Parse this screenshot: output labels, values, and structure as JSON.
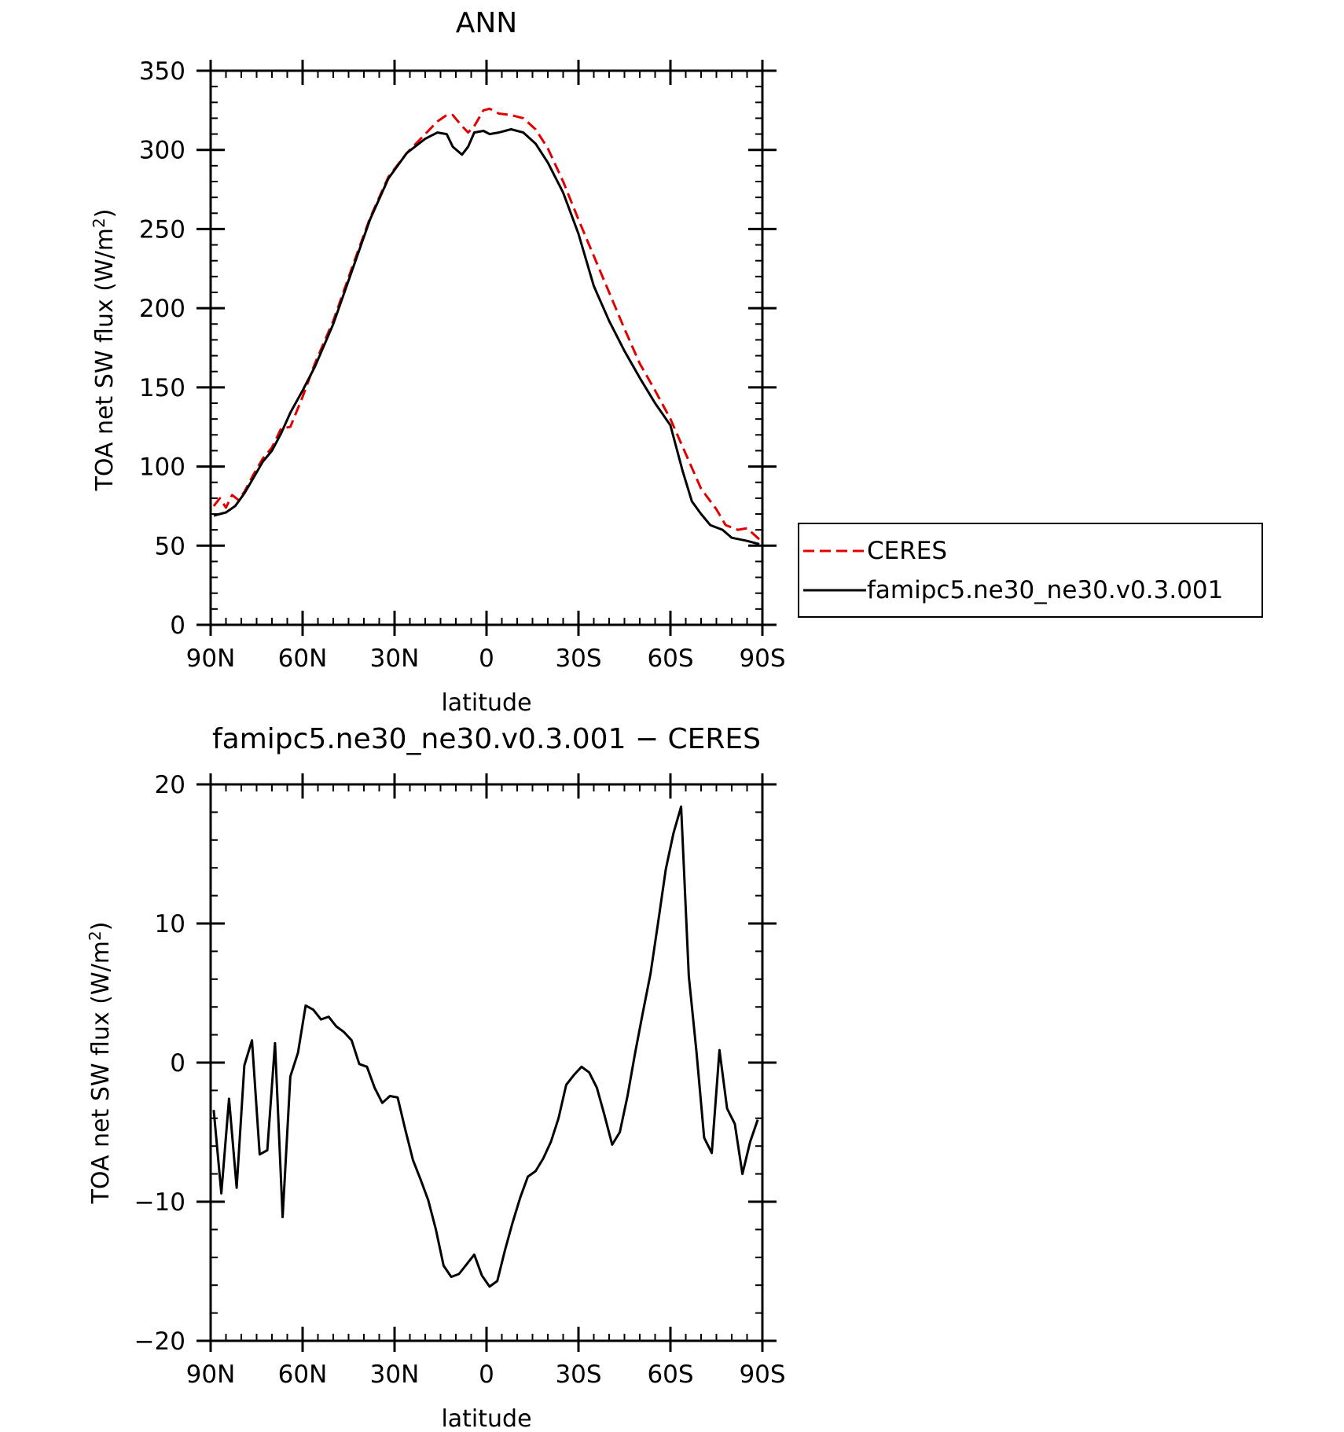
{
  "chart_data": [
    {
      "type": "line",
      "title": "ANN",
      "xlabel": "latitude",
      "ylabel": "TOA net SW flux (W/m",
      "ylabel_sup": "2",
      "ylabel_close": ")",
      "xlim": [
        90,
        -90
      ],
      "ylim": [
        0,
        350
      ],
      "x_ticks": [
        {
          "value": 90,
          "label": "90N"
        },
        {
          "value": 60,
          "label": "60N"
        },
        {
          "value": 30,
          "label": "30N"
        },
        {
          "value": 0,
          "label": "0"
        },
        {
          "value": -30,
          "label": "30S"
        },
        {
          "value": -60,
          "label": "60S"
        },
        {
          "value": -90,
          "label": "90S"
        }
      ],
      "y_ticks": [
        {
          "value": 0,
          "label": "0"
        },
        {
          "value": 50,
          "label": "50"
        },
        {
          "value": 100,
          "label": "100"
        },
        {
          "value": 150,
          "label": "150"
        },
        {
          "value": 200,
          "label": "200"
        },
        {
          "value": 250,
          "label": "250"
        },
        {
          "value": 300,
          "label": "300"
        },
        {
          "value": 350,
          "label": "350"
        }
      ],
      "legend": "right",
      "series": [
        {
          "name": "CERES",
          "color": "#e00000",
          "dash": true,
          "x": [
            89,
            87,
            85,
            83,
            81,
            79,
            76,
            73,
            70,
            67,
            64,
            60,
            56,
            50,
            44,
            38,
            32,
            26,
            20,
            16,
            13,
            11,
            8,
            6,
            4,
            1,
            -1,
            -4,
            -8,
            -12,
            -16,
            -20,
            -25,
            -30,
            -35,
            -40,
            -45,
            -50,
            -55,
            -60,
            -65,
            -70,
            -75,
            -78,
            -82,
            -85,
            -89
          ],
          "values": [
            75,
            80,
            74,
            82,
            79,
            84,
            95,
            105,
            112,
            124,
            125,
            144,
            165,
            192,
            225,
            257,
            283,
            298,
            310,
            318,
            322,
            322,
            315,
            311,
            315,
            325,
            326,
            323,
            322,
            320,
            313,
            301,
            280,
            256,
            233,
            210,
            187,
            165,
            148,
            130,
            108,
            86,
            73,
            63,
            60,
            61,
            54
          ]
        },
        {
          "name": "famipc5.ne30_ne30.v0.3.001",
          "color": "#000000",
          "dash": false,
          "x": [
            89,
            85,
            82,
            79,
            76,
            73,
            70,
            67,
            64,
            60,
            56,
            50,
            44,
            38,
            32,
            26,
            20,
            16,
            13,
            11,
            8,
            6,
            4,
            1,
            -1,
            -4,
            -8,
            -12,
            -16,
            -20,
            -25,
            -30,
            -35,
            -40,
            -45,
            -50,
            -55,
            -60,
            -64,
            -67,
            -70,
            -73,
            -77,
            -80,
            -85,
            -89
          ],
          "values": [
            69,
            71,
            75,
            83,
            93,
            103,
            110,
            121,
            134,
            148,
            163,
            190,
            223,
            256,
            282,
            298,
            307,
            311,
            310,
            302,
            297,
            302,
            311,
            312,
            310,
            311,
            313,
            311,
            304,
            292,
            273,
            247,
            214,
            192,
            173,
            156,
            140,
            126,
            97,
            78,
            70,
            63,
            60,
            55,
            53,
            51
          ]
        }
      ]
    },
    {
      "type": "line",
      "title": "famipc5.ne30_ne30.v0.3.001 − CERES",
      "xlabel": "latitude",
      "ylabel": "TOA net SW flux (W/m",
      "ylabel_sup": "2",
      "ylabel_close": ")",
      "xlim": [
        90,
        -90
      ],
      "ylim": [
        -20,
        20
      ],
      "x_ticks": [
        {
          "value": 90,
          "label": "90N"
        },
        {
          "value": 60,
          "label": "60N"
        },
        {
          "value": 30,
          "label": "30N"
        },
        {
          "value": 0,
          "label": "0"
        },
        {
          "value": -30,
          "label": "30S"
        },
        {
          "value": -60,
          "label": "60S"
        },
        {
          "value": -90,
          "label": "90S"
        }
      ],
      "y_ticks": [
        {
          "value": -20,
          "label": "−20"
        },
        {
          "value": -10,
          "label": "−10"
        },
        {
          "value": 0,
          "label": "0"
        },
        {
          "value": 10,
          "label": "10"
        },
        {
          "value": 20,
          "label": "20"
        }
      ],
      "series": [
        {
          "color": "#000000",
          "dash": false,
          "x": [
            89,
            86.5,
            84,
            81.5,
            79,
            76.5,
            74,
            71.5,
            69,
            66.5,
            64,
            61.5,
            59,
            56.5,
            54,
            51.5,
            49,
            46.5,
            44,
            41.5,
            39,
            36.5,
            34,
            31.5,
            29,
            26.5,
            24,
            21.5,
            19,
            16.5,
            14,
            11.5,
            9,
            6.5,
            4,
            1.5,
            -1,
            -3.5,
            -6,
            -8.5,
            -11,
            -13.5,
            -16,
            -18.5,
            -21,
            -23.5,
            -26,
            -28.5,
            -31,
            -33.5,
            -36,
            -38.5,
            -41,
            -43.5,
            -46,
            -48.5,
            -51,
            -53.5,
            -56,
            -58.5,
            -61,
            -63.5,
            -66,
            -68.5,
            -71,
            -73.5,
            -76,
            -78.5,
            -81,
            -83.5,
            -86,
            -88.5
          ],
          "values": [
            -3.4,
            -9.4,
            -2.6,
            -9.0,
            -0.2,
            1.6,
            -6.6,
            -6.3,
            1.4,
            -11.1,
            -1.0,
            0.7,
            4.1,
            3.8,
            3.1,
            3.3,
            2.6,
            2.2,
            1.6,
            -0.1,
            -0.3,
            -1.8,
            -2.9,
            -2.4,
            -2.5,
            -4.8,
            -7.0,
            -8.4,
            -9.9,
            -12.0,
            -14.6,
            -15.4,
            -15.2,
            -14.5,
            -13.8,
            -15.3,
            -16.1,
            -15.7,
            -13.5,
            -11.5,
            -9.7,
            -8.2,
            -7.8,
            -6.9,
            -5.7,
            -4.0,
            -1.6,
            -0.9,
            -0.3,
            -0.7,
            -1.8,
            -3.8,
            -5.9,
            -5.0,
            -2.4,
            0.7,
            3.6,
            6.4,
            10.1,
            13.9,
            16.5,
            18.4,
            6.2,
            0.8,
            -5.4,
            -6.5,
            0.9,
            -3.3,
            -4.4,
            -8.0,
            -5.7,
            -4.1
          ]
        }
      ]
    }
  ]
}
